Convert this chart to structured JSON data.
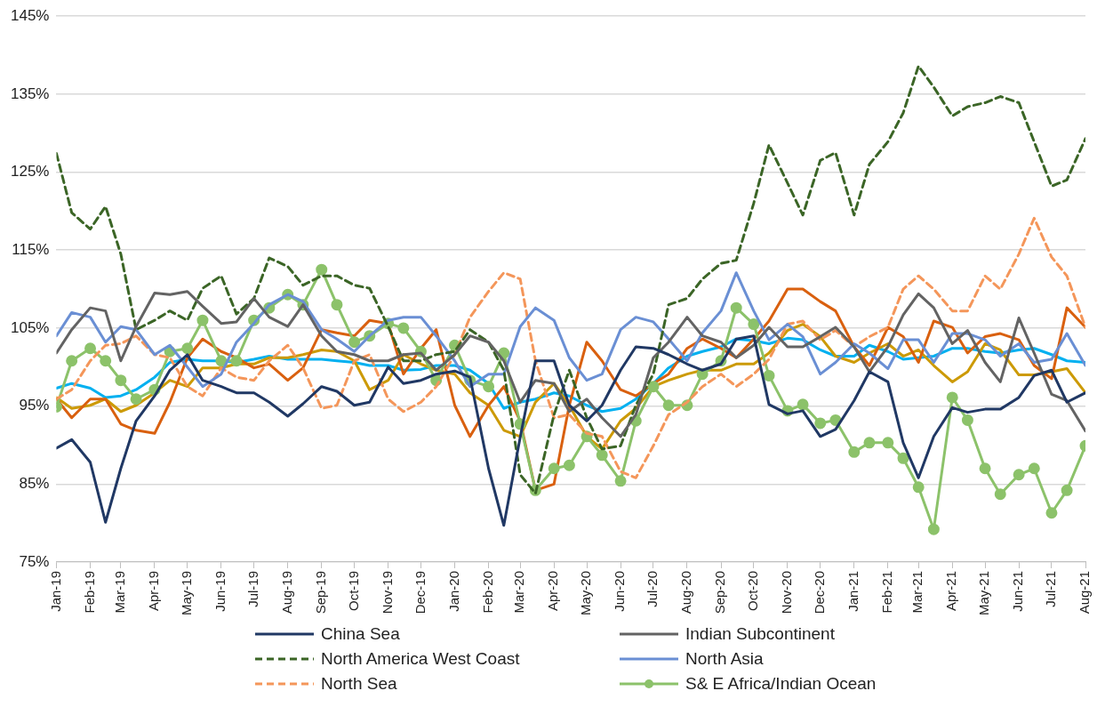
{
  "chart_data": {
    "type": "line",
    "x": [
      "2019-01-01",
      "2019-01-15",
      "2019-02-01",
      "2019-02-15",
      "2019-03-01",
      "2019-03-15",
      "2019-04-01",
      "2019-04-15",
      "2019-05-01",
      "2019-05-15",
      "2019-06-01",
      "2019-06-15",
      "2019-07-01",
      "2019-07-15",
      "2019-08-01",
      "2019-08-15",
      "2019-09-01",
      "2019-09-15",
      "2019-10-01",
      "2019-10-15",
      "2019-11-01",
      "2019-11-15",
      "2019-12-01",
      "2019-12-15",
      "2020-01-01",
      "2020-01-15",
      "2020-02-01",
      "2020-02-15",
      "2020-03-01",
      "2020-03-15",
      "2020-04-01",
      "2020-04-15",
      "2020-05-01",
      "2020-05-15",
      "2020-06-01",
      "2020-06-15",
      "2020-07-01",
      "2020-07-15",
      "2020-08-01",
      "2020-08-15",
      "2020-09-01",
      "2020-09-15",
      "2020-10-01",
      "2020-10-15",
      "2020-11-01",
      "2020-11-15",
      "2020-12-01",
      "2020-12-15",
      "2021-01-01",
      "2021-01-15",
      "2021-02-01",
      "2021-02-15",
      "2021-03-01",
      "2021-03-15",
      "2021-04-01",
      "2021-04-15",
      "2021-05-01",
      "2021-05-15",
      "2021-06-01",
      "2021-06-15",
      "2021-07-01",
      "2021-07-15",
      "2021-08-01"
    ],
    "series": [
      {
        "name": "China Sea",
        "color": "#203864",
        "values": [
          89.6,
          90.7,
          87.8,
          80.1,
          87,
          93.1,
          96.3,
          99.6,
          101.6,
          98.3,
          97.5,
          96.7,
          96.7,
          95.5,
          93.7,
          95.3,
          97.5,
          96.9,
          95.1,
          95.5,
          100,
          97.9,
          98.3,
          99.1,
          99.5,
          98.7,
          87,
          79.7,
          91,
          100.8,
          100.8,
          95.1,
          93.1,
          95.1,
          99.6,
          102.6,
          102.4,
          101.6,
          100.4,
          99.6,
          100.4,
          103.6,
          104,
          95.2,
          94,
          94.4,
          91.1,
          92,
          95.7,
          99.4,
          98.1,
          90.3,
          85.8,
          91.1,
          94.8,
          94.2,
          94.6,
          94.6,
          96.1,
          98.9,
          99.6,
          95.5,
          96.7
        ]
      },
      {
        "name": "Indian Subcontinent",
        "color": "#636363",
        "values": [
          101.8,
          104.8,
          107.6,
          107.2,
          100.8,
          105.2,
          109.5,
          109.3,
          109.7,
          107.8,
          105.6,
          105.8,
          108.8,
          106.4,
          105.2,
          108,
          104,
          102,
          101.6,
          100.8,
          100.8,
          101.6,
          101.8,
          99.6,
          101.6,
          104,
          103.2,
          100.8,
          95.5,
          98.3,
          97.9,
          94.3,
          95.9,
          93.5,
          91.1,
          93.9,
          101.2,
          103.2,
          106.4,
          104,
          103.2,
          101.2,
          102.8,
          105.1,
          102.6,
          102.6,
          103.9,
          105.1,
          102.6,
          99.4,
          102.6,
          106.7,
          109.4,
          107.6,
          103,
          104.7,
          100.6,
          98.1,
          106.3,
          101.8,
          96.5,
          95.7,
          91.8
        ]
      },
      {
        "name": "North America West Coast",
        "color": "#3b6526",
        "line_style": "dashed",
        "values": [
          127.4,
          119.8,
          117.7,
          120.6,
          114.5,
          104.8,
          106,
          107.2,
          106,
          110.1,
          111.7,
          106.8,
          108.8,
          114,
          112.9,
          110.5,
          111.7,
          111.7,
          110.5,
          110.1,
          105.2,
          100.8,
          100.8,
          101.6,
          102,
          104.8,
          103.2,
          99.6,
          86.2,
          83.8,
          93.9,
          99.6,
          93.5,
          89.5,
          89.9,
          95.1,
          99.1,
          108,
          108.8,
          111.3,
          113.3,
          113.7,
          121,
          128.5,
          123.6,
          119.5,
          126.5,
          127.5,
          119.5,
          126,
          128.9,
          132.6,
          138.6,
          135.9,
          132.2,
          133.4,
          133.9,
          134.7,
          133.9,
          128.9,
          123.2,
          124,
          129.3
        ]
      },
      {
        "name": "North Asia",
        "color": "#6a8fd4",
        "values": [
          104,
          107,
          106.4,
          103.2,
          105.2,
          104.8,
          101.6,
          102.8,
          100,
          97.5,
          99.1,
          103.2,
          105.6,
          108,
          109.3,
          108.4,
          104.8,
          103.6,
          102,
          104,
          106,
          106.4,
          106.4,
          104,
          100.8,
          97.5,
          99.1,
          99.1,
          105.2,
          107.6,
          106,
          101.2,
          98.3,
          99.1,
          104.8,
          106.4,
          105.8,
          103.6,
          100.8,
          104.4,
          107.2,
          112.1,
          107.2,
          103.5,
          105.5,
          103.9,
          99.1,
          100.6,
          103,
          101.8,
          99.8,
          103.5,
          103.5,
          100.6,
          104.3,
          104.3,
          103.5,
          101.4,
          103,
          100.6,
          101,
          104.3,
          100.2
        ]
      },
      {
        "name": "North Sea",
        "color": "#f4965a",
        "line_style": "dashed",
        "values": [
          95.9,
          97.1,
          100.8,
          102.8,
          103,
          104,
          101.6,
          101.2,
          97.5,
          96.3,
          99.9,
          98.7,
          98.3,
          100.8,
          102.8,
          99.9,
          94.7,
          95.1,
          100.8,
          101.6,
          95.9,
          94.3,
          95.5,
          97.5,
          101.6,
          106.4,
          109.7,
          112.1,
          111.3,
          100.8,
          93.5,
          93.9,
          91.5,
          91.1,
          86.6,
          85.8,
          89.9,
          93.9,
          95.5,
          97.5,
          99.1,
          97.5,
          99.1,
          101,
          105.5,
          105.9,
          103.5,
          104.7,
          102.6,
          103.9,
          105.1,
          110,
          111.7,
          110,
          107.2,
          107.2,
          111.7,
          110,
          114.5,
          119.1,
          114.1,
          111.7,
          105.1
        ]
      },
      {
        "name": "S& E Africa/Indian Ocean",
        "color": "#8cc26a",
        "marker": "circle",
        "values": [
          94.9,
          100.8,
          102.4,
          100.8,
          98.3,
          95.9,
          97.1,
          102,
          102.4,
          106,
          100.8,
          100.8,
          106,
          107.6,
          109.3,
          108,
          112.5,
          108,
          103.2,
          104,
          105.6,
          105,
          102,
          98.3,
          102.8,
          98.3,
          97.5,
          101.8,
          92.7,
          84.2,
          87,
          87.4,
          91.1,
          88.7,
          85.4,
          93.1,
          97.5,
          95.1,
          95.1,
          99.1,
          100.8,
          107.6,
          105.5,
          98.9,
          94.4,
          95.2,
          92.8,
          93.2,
          89.1,
          90.3,
          90.3,
          88.3,
          84.6,
          79.2,
          96.1,
          93.2,
          87,
          83.7,
          86.2,
          87,
          81.3,
          84.2,
          89.9
        ]
      },
      {
        "color": "#d9600f",
        "values": [
          95.9,
          93.5,
          95.9,
          95.9,
          92.7,
          91.9,
          91.5,
          95.5,
          101.2,
          103.6,
          102,
          101.2,
          99.9,
          100.4,
          98.3,
          99.9,
          104.8,
          104.4,
          104,
          106,
          105.6,
          99.1,
          102.4,
          104.8,
          95.1,
          91.1,
          95.1,
          97.5,
          93.1,
          84.2,
          85,
          95.1,
          103.2,
          100.8,
          97.1,
          96.3,
          97.9,
          99.1,
          102.4,
          103.6,
          102.4,
          101.2,
          103.6,
          105.9,
          110,
          110,
          108.4,
          107.2,
          102.6,
          100.2,
          105.1,
          103.9,
          100.6,
          105.9,
          105.1,
          101.8,
          103.9,
          104.3,
          103.5,
          100.2,
          98.5,
          107.6,
          105.1
        ]
      },
      {
        "color": "#cc9a06",
        "values": [
          96.1,
          94.7,
          95.1,
          95.9,
          94.3,
          95.1,
          96.7,
          98.3,
          97.5,
          99.9,
          99.9,
          100.4,
          100.4,
          101.2,
          101.2,
          101.6,
          102.2,
          102,
          100.8,
          97.1,
          98.3,
          101.6,
          100.4,
          99.6,
          99.1,
          96.7,
          95.1,
          91.9,
          91.1,
          95.5,
          97.9,
          95.1,
          91.1,
          89.5,
          93.1,
          94.7,
          97.5,
          98.3,
          99.1,
          99.6,
          99.6,
          100.4,
          100.4,
          101.8,
          104.7,
          105.5,
          103.9,
          101.4,
          100.6,
          101.8,
          103,
          101.4,
          102.2,
          100.2,
          98.1,
          99.4,
          103,
          102.2,
          99,
          99,
          99.4,
          99.8,
          96.7
        ]
      },
      {
        "color": "#00b0f0",
        "values": [
          97.3,
          97.9,
          97.3,
          96.1,
          96.3,
          97.1,
          98.7,
          100.6,
          101,
          100.8,
          100.8,
          100.6,
          101,
          101.4,
          101,
          101,
          101,
          100.8,
          100.6,
          100.2,
          100.2,
          99.6,
          99.7,
          100.2,
          100.2,
          99.6,
          97.9,
          94.7,
          95.5,
          95.9,
          96.7,
          96.3,
          95.1,
          94.3,
          94.7,
          95.9,
          97.9,
          99.9,
          101.4,
          102,
          102.6,
          103.6,
          103.4,
          103,
          103.7,
          103.5,
          102.2,
          101.4,
          101.4,
          102.8,
          102,
          101,
          101.2,
          101.4,
          102.4,
          102.4,
          102,
          101.8,
          102.2,
          102.4,
          101.6,
          100.8,
          100.6
        ]
      }
    ],
    "xlim": [
      "2019-01-01",
      "2021-08-01"
    ],
    "xticks": [
      {
        "value": "2019-01-01",
        "label": "Jan-19"
      },
      {
        "value": "2019-02-01",
        "label": "Feb-19"
      },
      {
        "value": "2019-03-01",
        "label": "Mar-19"
      },
      {
        "value": "2019-04-01",
        "label": "Apr-19"
      },
      {
        "value": "2019-05-01",
        "label": "May-19"
      },
      {
        "value": "2019-06-01",
        "label": "Jun-19"
      },
      {
        "value": "2019-07-01",
        "label": "Jul-19"
      },
      {
        "value": "2019-08-01",
        "label": "Aug-19"
      },
      {
        "value": "2019-09-01",
        "label": "Sep-19"
      },
      {
        "value": "2019-10-01",
        "label": "Oct-19"
      },
      {
        "value": "2019-11-01",
        "label": "Nov-19"
      },
      {
        "value": "2019-12-01",
        "label": "Dec-19"
      },
      {
        "value": "2020-01-01",
        "label": "Jan-20"
      },
      {
        "value": "2020-02-01",
        "label": "Feb-20"
      },
      {
        "value": "2020-03-01",
        "label": "Mar-20"
      },
      {
        "value": "2020-04-01",
        "label": "Apr-20"
      },
      {
        "value": "2020-05-01",
        "label": "May-20"
      },
      {
        "value": "2020-06-01",
        "label": "Jun-20"
      },
      {
        "value": "2020-07-01",
        "label": "Jul-20"
      },
      {
        "value": "2020-08-01",
        "label": "Aug-20"
      },
      {
        "value": "2020-09-01",
        "label": "Sep-20"
      },
      {
        "value": "2020-10-01",
        "label": "Oct-20"
      },
      {
        "value": "2020-11-01",
        "label": "Nov-20"
      },
      {
        "value": "2020-12-01",
        "label": "Dec-20"
      },
      {
        "value": "2021-01-01",
        "label": "Jan-21"
      },
      {
        "value": "2021-02-01",
        "label": "Feb-21"
      },
      {
        "value": "2021-03-01",
        "label": "Mar-21"
      },
      {
        "value": "2021-04-01",
        "label": "Apr-21"
      },
      {
        "value": "2021-05-01",
        "label": "May-21"
      },
      {
        "value": "2021-06-01",
        "label": "Jun-21"
      },
      {
        "value": "2021-07-01",
        "label": "Jul-21"
      },
      {
        "value": "2021-08-01",
        "label": "Aug-21"
      }
    ],
    "ylim": [
      75,
      145
    ],
    "yticks": [
      {
        "value": 75,
        "label": "75%"
      },
      {
        "value": 85,
        "label": "85%"
      },
      {
        "value": 95,
        "label": "95%"
      },
      {
        "value": 105,
        "label": "105%"
      },
      {
        "value": 115,
        "label": "115%"
      },
      {
        "value": 125,
        "label": "125%"
      },
      {
        "value": 135,
        "label": "135%"
      },
      {
        "value": 145,
        "label": "145%"
      }
    ],
    "grid": "y",
    "legend": "bottom"
  }
}
